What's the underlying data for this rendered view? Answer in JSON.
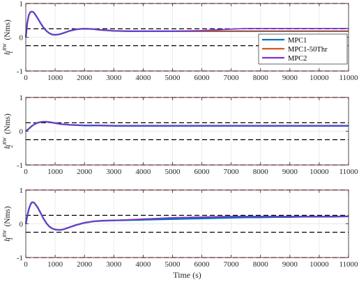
{
  "chart_data": [
    {
      "type": "line",
      "ylabel": {
        "base": "h",
        "sup": "RW",
        "sub": "1",
        "unit": "(Nms)"
      },
      "ylim": [
        -1,
        1
      ],
      "xlim": [
        0,
        11000
      ],
      "grid": true,
      "xticks": [
        0,
        1000,
        2000,
        3000,
        4000,
        5000,
        6000,
        7000,
        8000,
        9000,
        10000,
        11000
      ],
      "yticks": [
        -1,
        0,
        1
      ],
      "ytick_labels": [
        "-1",
        "0",
        "1"
      ],
      "xtick_labels": [
        "0",
        "1000",
        "2000",
        "3000",
        "4000",
        "5000",
        "6000",
        "7000",
        "8000",
        "9000",
        "10000",
        "11000"
      ],
      "limits": {
        "red": [
          1,
          -1
        ],
        "black": [
          0.25,
          -0.25
        ]
      },
      "legend": {
        "placement": "right",
        "entries": [
          "MPC1",
          "MPC1-50Thr",
          "MPC2"
        ]
      },
      "series": [
        {
          "name": "MPC1",
          "color": "#0072bd",
          "x": [
            0,
            50,
            100,
            150,
            200,
            250,
            300,
            400,
            500,
            600,
            700,
            800,
            900,
            1000,
            1100,
            1200,
            1300,
            1400,
            1500,
            1700,
            1900,
            2100,
            2300,
            2500,
            3000,
            3500,
            4000,
            4500,
            5000,
            5500,
            6000,
            6500,
            7000,
            7500,
            8000,
            8500,
            9000,
            9500,
            10000,
            10500,
            11000
          ],
          "y": [
            0,
            0.42,
            0.65,
            0.74,
            0.76,
            0.75,
            0.7,
            0.57,
            0.42,
            0.29,
            0.19,
            0.12,
            0.08,
            0.07,
            0.08,
            0.1,
            0.13,
            0.16,
            0.19,
            0.23,
            0.25,
            0.25,
            0.24,
            0.22,
            0.19,
            0.18,
            0.18,
            0.18,
            0.18,
            0.18,
            0.18,
            0.18,
            0.18,
            0.18,
            0.18,
            0.18,
            0.18,
            0.18,
            0.18,
            0.18,
            0.18
          ]
        },
        {
          "name": "MPC1-50Thr",
          "color": "#d95319",
          "x": [
            0,
            50,
            100,
            150,
            200,
            250,
            300,
            400,
            500,
            600,
            700,
            800,
            900,
            1000,
            1100,
            1200,
            1300,
            1400,
            1500,
            1700,
            1900,
            2100,
            2300,
            2500,
            3000,
            3500,
            4000,
            4500,
            5000,
            5500,
            6000,
            6500,
            7000,
            7500,
            8000,
            8500,
            9000,
            9500,
            10000,
            10500,
            11000
          ],
          "y": [
            0,
            0.42,
            0.65,
            0.74,
            0.76,
            0.75,
            0.7,
            0.57,
            0.42,
            0.29,
            0.19,
            0.12,
            0.08,
            0.07,
            0.08,
            0.1,
            0.13,
            0.16,
            0.19,
            0.23,
            0.25,
            0.25,
            0.24,
            0.22,
            0.19,
            0.18,
            0.18,
            0.18,
            0.18,
            0.18,
            0.18,
            0.18,
            0.18,
            0.18,
            0.18,
            0.18,
            0.18,
            0.18,
            0.18,
            0.18,
            0.18
          ]
        },
        {
          "name": "MPC2",
          "color": "#7e2fd8",
          "x": [
            0,
            50,
            100,
            150,
            200,
            250,
            300,
            400,
            500,
            600,
            700,
            800,
            900,
            1000,
            1100,
            1200,
            1300,
            1400,
            1500,
            1700,
            1900,
            2100,
            2300,
            2500,
            3000,
            3500,
            4000,
            4500,
            5000,
            5500,
            6000,
            6500,
            7000,
            7500,
            8000,
            8500,
            9000,
            9500,
            10000,
            10500,
            11000
          ],
          "y": [
            0,
            0.42,
            0.65,
            0.74,
            0.76,
            0.75,
            0.7,
            0.57,
            0.42,
            0.29,
            0.19,
            0.12,
            0.08,
            0.07,
            0.08,
            0.1,
            0.13,
            0.16,
            0.19,
            0.23,
            0.25,
            0.25,
            0.24,
            0.22,
            0.19,
            0.18,
            0.18,
            0.18,
            0.18,
            0.19,
            0.2,
            0.22,
            0.24,
            0.26,
            0.26,
            0.26,
            0.26,
            0.26,
            0.26,
            0.26,
            0.26
          ]
        }
      ]
    },
    {
      "type": "line",
      "ylabel": {
        "base": "h",
        "sup": "RW",
        "sub": "2",
        "unit": "(Nms)"
      },
      "ylim": [
        -1,
        1
      ],
      "xlim": [
        0,
        11000
      ],
      "grid": true,
      "xticks": [
        0,
        1000,
        2000,
        3000,
        4000,
        5000,
        6000,
        7000,
        8000,
        9000,
        10000,
        11000
      ],
      "yticks": [
        -1,
        0,
        1
      ],
      "ytick_labels": [
        "-1",
        "0",
        "1"
      ],
      "xtick_labels": [
        "0",
        "1000",
        "2000",
        "3000",
        "4000",
        "5000",
        "6000",
        "7000",
        "8000",
        "9000",
        "10000",
        "11000"
      ],
      "limits": {
        "red": [
          1,
          -1
        ],
        "black": [
          0.25,
          -0.25
        ]
      },
      "series": [
        {
          "name": "MPC1",
          "color": "#0072bd",
          "x": [
            0,
            100,
            200,
            300,
            400,
            500,
            600,
            700,
            800,
            1000,
            1200,
            1500,
            2000,
            2500,
            3000,
            4000,
            5000,
            6000,
            7000,
            8000,
            9000,
            10000,
            11000
          ],
          "y": [
            0,
            0.07,
            0.15,
            0.21,
            0.25,
            0.27,
            0.28,
            0.28,
            0.27,
            0.24,
            0.21,
            0.19,
            0.17,
            0.17,
            0.16,
            0.16,
            0.16,
            0.16,
            0.16,
            0.16,
            0.16,
            0.16,
            0.16
          ]
        },
        {
          "name": "MPC1-50Thr",
          "color": "#d95319",
          "x": [
            0,
            100,
            200,
            300,
            400,
            500,
            600,
            700,
            800,
            1000,
            1200,
            1500,
            2000,
            2500,
            3000,
            4000,
            5000,
            6000,
            7000,
            8000,
            9000,
            10000,
            11000
          ],
          "y": [
            0,
            0.07,
            0.15,
            0.21,
            0.25,
            0.27,
            0.28,
            0.28,
            0.27,
            0.24,
            0.21,
            0.19,
            0.17,
            0.17,
            0.16,
            0.16,
            0.16,
            0.16,
            0.16,
            0.16,
            0.16,
            0.16,
            0.16
          ]
        },
        {
          "name": "MPC2",
          "color": "#7e2fd8",
          "x": [
            0,
            100,
            200,
            300,
            400,
            500,
            600,
            700,
            800,
            1000,
            1200,
            1500,
            2000,
            2500,
            3000,
            4000,
            5000,
            6000,
            7000,
            8000,
            9000,
            10000,
            11000
          ],
          "y": [
            0,
            0.07,
            0.15,
            0.21,
            0.25,
            0.27,
            0.28,
            0.28,
            0.27,
            0.24,
            0.21,
            0.19,
            0.17,
            0.17,
            0.16,
            0.16,
            0.16,
            0.16,
            0.16,
            0.16,
            0.16,
            0.16,
            0.16
          ]
        }
      ]
    },
    {
      "type": "line",
      "ylabel": {
        "base": "h",
        "sup": "RW",
        "sub": "3",
        "unit": "(Nms)"
      },
      "ylim": [
        -1,
        1
      ],
      "xlim": [
        0,
        11000
      ],
      "xlabel": "Time (s)",
      "grid": true,
      "xticks": [
        0,
        1000,
        2000,
        3000,
        4000,
        5000,
        6000,
        7000,
        8000,
        9000,
        10000,
        11000
      ],
      "yticks": [
        -1,
        0,
        1
      ],
      "ytick_labels": [
        "-1",
        "0",
        "1"
      ],
      "xtick_labels": [
        "0",
        "1000",
        "2000",
        "3000",
        "4000",
        "5000",
        "6000",
        "7000",
        "8000",
        "9000",
        "10000",
        "11000"
      ],
      "limits": {
        "red": [
          1,
          -1
        ],
        "black": [
          0.25,
          -0.25
        ]
      },
      "series": [
        {
          "name": "MPC1",
          "color": "#0072bd",
          "x": [
            0,
            50,
            100,
            150,
            200,
            250,
            300,
            400,
            500,
            600,
            700,
            800,
            900,
            1000,
            1100,
            1200,
            1300,
            1400,
            1500,
            1700,
            2000,
            2300,
            2600,
            3000,
            3500,
            4000,
            4500,
            5000,
            5500,
            6000,
            6500,
            7000,
            7500,
            8000,
            8500,
            9000,
            9500,
            10000,
            10500,
            11000
          ],
          "y": [
            0,
            0.22,
            0.42,
            0.55,
            0.63,
            0.64,
            0.61,
            0.49,
            0.33,
            0.16,
            0.02,
            -0.08,
            -0.14,
            -0.17,
            -0.18,
            -0.18,
            -0.16,
            -0.13,
            -0.1,
            -0.04,
            0.03,
            0.07,
            0.09,
            0.1,
            0.11,
            0.12,
            0.13,
            0.14,
            0.15,
            0.16,
            0.17,
            0.18,
            0.19,
            0.19,
            0.2,
            0.2,
            0.21,
            0.21,
            0.21,
            0.22
          ]
        },
        {
          "name": "MPC1-50Thr",
          "color": "#d95319",
          "x": [
            0,
            50,
            100,
            150,
            200,
            250,
            300,
            400,
            500,
            600,
            700,
            800,
            900,
            1000,
            1100,
            1200,
            1300,
            1400,
            1500,
            1700,
            2000,
            2300,
            2600,
            3000,
            3500,
            4000,
            4500,
            5000,
            5500,
            6000,
            6500,
            7000,
            7500,
            8000,
            8500,
            9000,
            9500,
            10000,
            10500,
            11000
          ],
          "y": [
            0,
            0.22,
            0.42,
            0.55,
            0.63,
            0.64,
            0.61,
            0.49,
            0.33,
            0.16,
            0.02,
            -0.08,
            -0.14,
            -0.17,
            -0.18,
            -0.18,
            -0.16,
            -0.13,
            -0.1,
            -0.04,
            0.03,
            0.07,
            0.09,
            0.1,
            0.12,
            0.14,
            0.16,
            0.18,
            0.19,
            0.2,
            0.21,
            0.22,
            0.22,
            0.22,
            0.22,
            0.22,
            0.22,
            0.22,
            0.22,
            0.22
          ]
        },
        {
          "name": "MPC2",
          "color": "#7e2fd8",
          "x": [
            0,
            50,
            100,
            150,
            200,
            250,
            300,
            400,
            500,
            600,
            700,
            800,
            900,
            1000,
            1100,
            1200,
            1300,
            1400,
            1500,
            1700,
            2000,
            2300,
            2600,
            3000,
            3500,
            4000,
            4500,
            5000,
            5500,
            6000,
            6500,
            7000,
            7500,
            8000,
            8500,
            9000,
            9500,
            10000,
            10500,
            11000
          ],
          "y": [
            0,
            0.22,
            0.42,
            0.55,
            0.63,
            0.64,
            0.61,
            0.49,
            0.33,
            0.16,
            0.02,
            -0.08,
            -0.14,
            -0.17,
            -0.18,
            -0.18,
            -0.16,
            -0.13,
            -0.1,
            -0.04,
            0.03,
            0.07,
            0.09,
            0.1,
            0.12,
            0.14,
            0.16,
            0.18,
            0.19,
            0.2,
            0.21,
            0.22,
            0.22,
            0.22,
            0.22,
            0.22,
            0.22,
            0.22,
            0.22,
            0.22
          ]
        }
      ]
    }
  ]
}
